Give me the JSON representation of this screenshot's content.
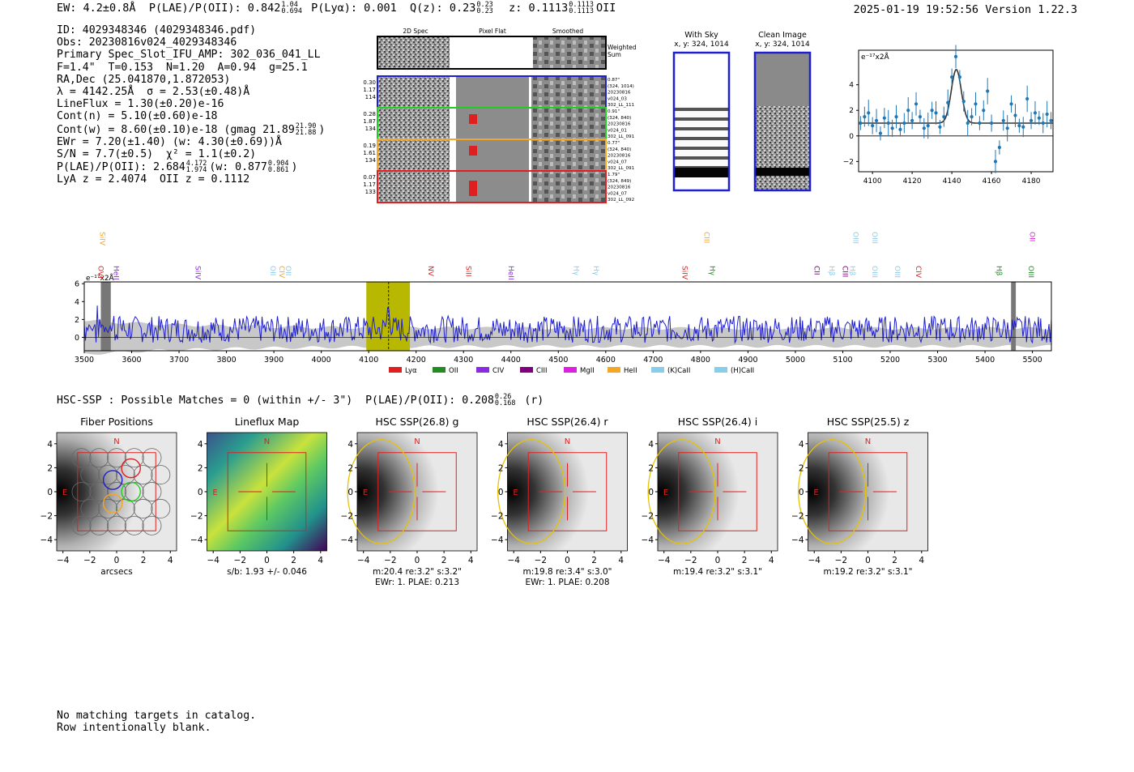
{
  "header": {
    "ew": "EW: 4.2±0.8Å",
    "plae_label": "P(LAE)/P(OII): 0.842",
    "plae_hi": "1.04",
    "plae_lo": "0.694",
    "plya": "P(Lyα): 0.001",
    "qz_label": "Q(z): 0.23",
    "qz_hi": "0.23",
    "qz_lo": "0.23",
    "z_label": "z: 0.1113",
    "z_hi": "0.1113",
    "z_lo": "0.1113",
    "z_line": "OII",
    "datetime": "2025-01-19 19:52:56",
    "version": "Version 1.22.3"
  },
  "info": {
    "id": "ID: 4029348346 (4029348346.pdf)",
    "obs": "Obs: 20230816v024_4029348346",
    "primary": "Primary Spec_Slot_IFU_AMP: 302_036_041_LL",
    "params": "F=1.4\"  T=0.153  N=1.20  A=0.94  g=25.1",
    "radec": "RA,Dec (25.041870,1.872053)",
    "lambda": "λ = 4142.25Å  σ = 2.53(±0.48)Å",
    "lineflux": "LineFlux = 1.30(±0.20)e-16",
    "contn": "Cont(n) = 5.10(±0.60)e-18",
    "contw": "Cont(w) = 8.60(±0.10)e-18 (gmag 21.89",
    "contw_hi": "21.90",
    "contw_lo": "21.88",
    "contw_end": ")",
    "ewr": "EWr = 7.20(±1.40) (w: 4.30(±0.69))Å",
    "sn": "S/N = 7.7(±0.5)  χ² = 1.1(±0.2)",
    "plae": "P(LAE)/P(OII): 2.684",
    "plae_hi": "4.172",
    "plae_lo": "1.974",
    "plae_w": "(w: 0.877",
    "plae_w_hi": "0.904",
    "plae_w_lo": "0.861",
    "plae_end": ")",
    "lyaz": "LyA z = 2.4074  OII z = 0.1112"
  },
  "cutouts": {
    "col_headers": [
      "2D Spec",
      "Pixel Flat",
      "Smoothed"
    ],
    "weighted_sum": [
      "Weighted",
      "Sum"
    ],
    "rows": [
      {
        "left": [
          "0.30",
          "1.17",
          "114"
        ],
        "right": [
          "0.87\"",
          "(324, 1014)",
          "20230816",
          "v024_03",
          "302_LL_111"
        ],
        "color": "#1f1fd0"
      },
      {
        "left": [
          "0.28",
          "1.87",
          "134"
        ],
        "right": [
          "0.91\"",
          "(324, 840)",
          "20230816",
          "v024_01",
          "302_LL_091"
        ],
        "color": "#22cc22"
      },
      {
        "left": [
          "0.19",
          "1.61",
          "134"
        ],
        "right": [
          "0.77\"",
          "(324, 840)",
          "20230816",
          "v024_07",
          "302_LL_091"
        ],
        "color": "#f5a623"
      },
      {
        "left": [
          "0.07",
          "1.17",
          "133"
        ],
        "right": [
          "1.79\"",
          "(324, 849)",
          "20230816",
          "v024_07",
          "302_LL_092"
        ],
        "color": "#e02020"
      }
    ]
  },
  "sky": {
    "with_sky": "With Sky",
    "with_sky_xy": "x, y: 324, 1014",
    "clean": "Clean Image",
    "clean_xy": "x, y: 324, 1014"
  },
  "fit_chart": {
    "type": "scatter",
    "unit_label": "e⁻¹⁷x2Å",
    "xlim": [
      4093,
      4191
    ],
    "ylim": [
      -2.8,
      6.7
    ],
    "x_ticks": [
      "4100",
      "4120",
      "4140",
      "4160",
      "4180"
    ],
    "y_ticks": [
      "−2",
      "0",
      "2",
      "4"
    ],
    "x": [
      4094,
      4096,
      4098,
      4100,
      4102,
      4104,
      4106,
      4108,
      4110,
      4112,
      4114,
      4116,
      4118,
      4120,
      4122,
      4124,
      4126,
      4128,
      4130,
      4132,
      4134,
      4136,
      4138,
      4140,
      4142,
      4144,
      4146,
      4148,
      4150,
      4152,
      4154,
      4156,
      4158,
      4160,
      4162,
      4164,
      4166,
      4168,
      4170,
      4172,
      4174,
      4176,
      4178,
      4180,
      4182,
      4184,
      4186,
      4188,
      4190
    ],
    "y": [
      1.0,
      1.5,
      1.8,
      0.8,
      1.2,
      0.2,
      1.4,
      1.0,
      0.6,
      1.5,
      0.5,
      1.0,
      2.0,
      1.2,
      2.5,
      1.5,
      0.6,
      0.8,
      2.0,
      1.8,
      0.7,
      1.5,
      2.6,
      4.6,
      6.2,
      4.6,
      2.7,
      1.0,
      1.5,
      2.5,
      1.0,
      2.0,
      3.5,
      1.0,
      -2.0,
      -0.9,
      1.2,
      0.6,
      2.5,
      1.6,
      0.8,
      0.7,
      2.9,
      1.2,
      1.8,
      1.4,
      1.0,
      1.7,
      1.2
    ],
    "fit_center": 4142.25,
    "fit_sigma": 2.53,
    "fit_baseline": 1.0,
    "fit_amp": 4.2
  },
  "spectrum": {
    "type": "line",
    "unit_label": "e⁻¹⁷x2Å",
    "xlim": [
      3500,
      5540
    ],
    "ylim": [
      -1.5,
      6.2
    ],
    "x_ticks": [
      "3500",
      "3600",
      "3700",
      "3800",
      "3900",
      "4000",
      "4100",
      "4200",
      "4300",
      "4400",
      "4500",
      "4600",
      "4700",
      "4800",
      "4900",
      "5000",
      "5100",
      "5200",
      "5300",
      "5400",
      "5500"
    ],
    "y_ticks": [
      "0",
      "2",
      "4",
      "6"
    ],
    "highlight_range": [
      4095,
      4187
    ],
    "line_center": 4142,
    "gray_bands": [
      [
        3535,
        3556
      ],
      [
        5455,
        5465
      ]
    ],
    "line_labels": [
      {
        "text": "SiIV",
        "x": 3533,
        "row": 0,
        "color": "#f5a623"
      },
      {
        "text": "CIII",
        "x": 4808,
        "row": 0,
        "color": "#f5a623"
      },
      {
        "text": "OIII",
        "x": 5122,
        "row": 0,
        "color": "#87ceeb"
      },
      {
        "text": "OIII",
        "x": 5162,
        "row": 0,
        "color": "#87ceeb"
      },
      {
        "text": "OII",
        "x": 5495,
        "row": 0,
        "color": "#e020e0"
      },
      {
        "text": "OVI",
        "x": 3530,
        "row": 1,
        "color": "#e02020"
      },
      {
        "text": "HeII",
        "x": 3562,
        "row": 1,
        "color": "#8a2be2"
      },
      {
        "text": "SiIV",
        "x": 3735,
        "row": 1,
        "color": "#8a2be2"
      },
      {
        "text": "OII",
        "x": 3893,
        "row": 1,
        "color": "#87ceeb"
      },
      {
        "text": "CIV",
        "x": 3912,
        "row": 1,
        "color": "#f5a623"
      },
      {
        "text": "OII",
        "x": 3925,
        "row": 1,
        "color": "#87ceeb"
      },
      {
        "text": "NV",
        "x": 4226,
        "row": 1,
        "color": "#e02020"
      },
      {
        "text": "SiII",
        "x": 4306,
        "row": 1,
        "color": "#e02020"
      },
      {
        "text": "HeII",
        "x": 4395,
        "row": 1,
        "color": "#8a2be2"
      },
      {
        "text": "Hγ",
        "x": 4533,
        "row": 1,
        "color": "#87ceeb"
      },
      {
        "text": "Hγ",
        "x": 4575,
        "row": 1,
        "color": "#87ceeb"
      },
      {
        "text": "SiIV",
        "x": 4762,
        "row": 1,
        "color": "#e02020"
      },
      {
        "text": "Hγ",
        "x": 4820,
        "row": 1,
        "color": "#228b22"
      },
      {
        "text": "CII",
        "x": 5040,
        "row": 1,
        "color": "#800080"
      },
      {
        "text": "Hβ",
        "x": 5072,
        "row": 1,
        "color": "#87ceeb"
      },
      {
        "text": "CIII",
        "x": 5100,
        "row": 1,
        "color": "#800080"
      },
      {
        "text": "Hβ",
        "x": 5115,
        "row": 1,
        "color": "#87ceeb"
      },
      {
        "text": "OIII",
        "x": 5162,
        "row": 1,
        "color": "#87ceeb"
      },
      {
        "text": "OIII",
        "x": 5210,
        "row": 1,
        "color": "#87ceeb"
      },
      {
        "text": "CIV",
        "x": 5255,
        "row": 1,
        "color": "#e02020"
      },
      {
        "text": "Hβ",
        "x": 5425,
        "row": 1,
        "color": "#228b22"
      },
      {
        "text": "OIII",
        "x": 5492,
        "row": 1,
        "color": "#228b22"
      }
    ],
    "legend": [
      {
        "label": "Lyα",
        "color": "#e02020"
      },
      {
        "label": "OII",
        "color": "#228b22"
      },
      {
        "label": "CIV",
        "color": "#8a2be2"
      },
      {
        "label": "CIII",
        "color": "#800080"
      },
      {
        "label": "MgII",
        "color": "#e020e0"
      },
      {
        "label": "HeII",
        "color": "#f5a623"
      },
      {
        "label": "(K)CaII",
        "color": "#87ceeb"
      },
      {
        "label": "(H)CaII",
        "color": "#87ceeb"
      }
    ]
  },
  "hsc": {
    "head": "HSC-SSP : Possible Matches = 0 (within +/- 3\")  P(LAE)/P(OII): 0.208",
    "head_hi": "0.26",
    "head_lo": "0.168",
    "head_end": " (r)",
    "axis_ticks": [
      "−4",
      "−2",
      "0",
      "2",
      "4"
    ],
    "compass_n": "N",
    "compass_e": "E",
    "panels": [
      {
        "title": "Fiber Positions",
        "caption1": "arcsecs",
        "caption2": "",
        "kind": "fibers"
      },
      {
        "title": "Lineflux Map",
        "caption1": "s/b: 1.93 +/- 0.046",
        "caption2": "",
        "kind": "flux"
      },
      {
        "title": "HSC SSP(26.8) g",
        "caption1": "m:20.4  re:3.2\"  s:3.2\"",
        "caption2": "EWr: 1. PLAE: 0.213",
        "kind": "img"
      },
      {
        "title": "HSC SSP(26.4) r",
        "caption1": "m:19.8  re:3.4\"  s:3.0\"",
        "caption2": "EWr: 1. PLAE: 0.208",
        "kind": "img"
      },
      {
        "title": "HSC SSP(26.4) i",
        "caption1": "m:19.4  re:3.2\"  s:3.1\"",
        "caption2": "",
        "kind": "img"
      },
      {
        "title": "HSC SSP(25.5) z",
        "caption1": "m:19.2  re:3.2\"  s:3.1\"",
        "caption2": "",
        "kind": "img"
      }
    ]
  },
  "footer": {
    "line1": "No matching targets in catalog.",
    "line2": "Row intentionally blank."
  },
  "chart_data": [
    {
      "type": "scatter",
      "title": "",
      "xlabel": "",
      "ylabel": "e⁻¹⁷x2Å",
      "xlim": [
        4093,
        4191
      ],
      "ylim": [
        -2.8,
        6.7
      ],
      "x": [
        4094,
        4096,
        4098,
        4100,
        4102,
        4104,
        4106,
        4108,
        4110,
        4112,
        4114,
        4116,
        4118,
        4120,
        4122,
        4124,
        4126,
        4128,
        4130,
        4132,
        4134,
        4136,
        4138,
        4140,
        4142,
        4144,
        4146,
        4148,
        4150,
        4152,
        4154,
        4156,
        4158,
        4160,
        4162,
        4164,
        4166,
        4168,
        4170,
        4172,
        4174,
        4176,
        4178,
        4180,
        4182,
        4184,
        4186,
        4188,
        4190
      ],
      "y": [
        1.0,
        1.5,
        1.8,
        0.8,
        1.2,
        0.2,
        1.4,
        1.0,
        0.6,
        1.5,
        0.5,
        1.0,
        2.0,
        1.2,
        2.5,
        1.5,
        0.6,
        0.8,
        2.0,
        1.8,
        0.7,
        1.5,
        2.6,
        4.6,
        6.2,
        4.6,
        2.7,
        1.0,
        1.5,
        2.5,
        1.0,
        2.0,
        3.5,
        1.0,
        -2.0,
        -0.9,
        1.2,
        0.6,
        2.5,
        1.6,
        0.8,
        0.7,
        2.9,
        1.2,
        1.8,
        1.4,
        1.0,
        1.7,
        1.2
      ],
      "grid": false
    },
    {
      "type": "line",
      "title": "",
      "xlabel": "",
      "ylabel": "e⁻¹⁷x2Å",
      "xlim": [
        3500,
        5540
      ],
      "ylim": [
        -1.5,
        6.2
      ],
      "legend": "bottom-center",
      "grid": false
    }
  ]
}
